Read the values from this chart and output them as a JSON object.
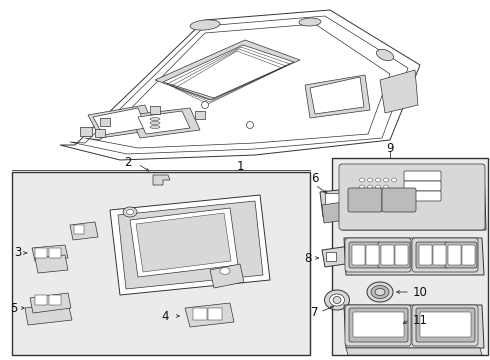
{
  "bg_color": "#ffffff",
  "line_color": "#333333",
  "gray_light": "#d8d8d8",
  "gray_mid": "#bbbbbb",
  "gray_bg": "#ebebeb",
  "label_color": "#111111",
  "fig_w": 4.9,
  "fig_h": 3.6,
  "dpi": 100
}
